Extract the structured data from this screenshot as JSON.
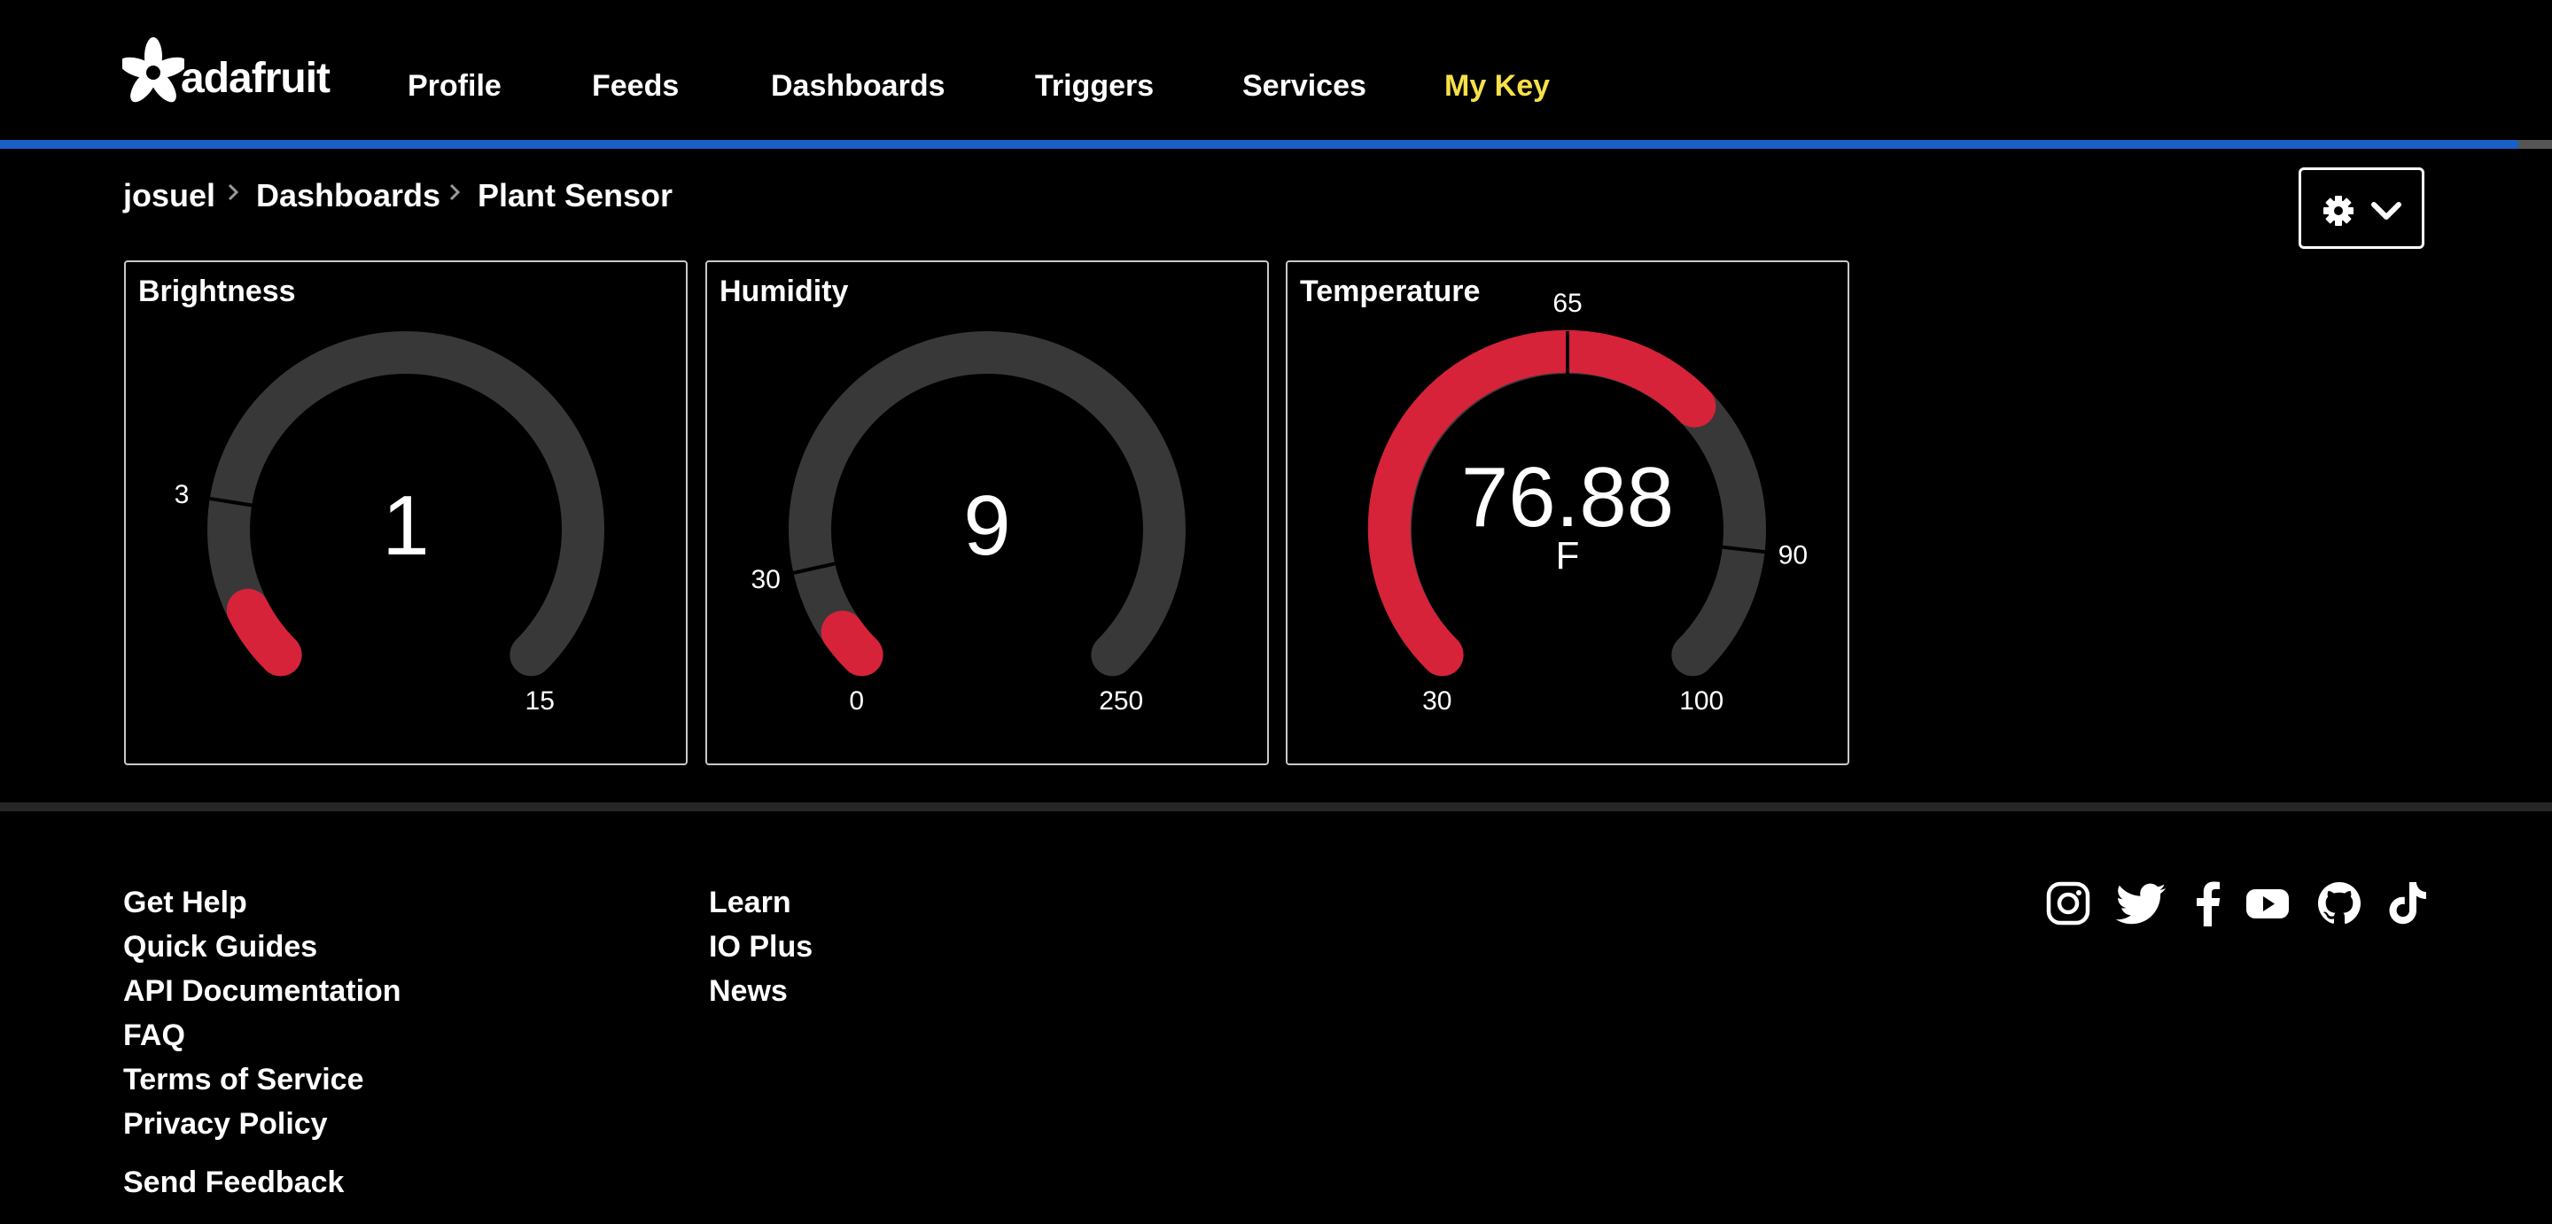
{
  "brand": {
    "name": "adafruit"
  },
  "nav": [
    {
      "label": "Profile"
    },
    {
      "label": "Feeds"
    },
    {
      "label": "Dashboards"
    },
    {
      "label": "Triggers"
    },
    {
      "label": "Services"
    },
    {
      "label": "My Key"
    }
  ],
  "breadcrumb": [
    "josuel",
    "Dashboards",
    "Plant Sensor"
  ],
  "gauges": [
    {
      "title": "Brightness",
      "value": "1",
      "unit": "",
      "min": 0,
      "max": 15,
      "min_label": "",
      "max_label": "15",
      "threshold_low": 3,
      "threshold_low_label": "3",
      "threshold_high": null,
      "threshold_high_label": ""
    },
    {
      "title": "Humidity",
      "value": "9",
      "unit": "",
      "min": 0,
      "max": 250,
      "min_label": "0",
      "max_label": "250",
      "threshold_low": 30,
      "threshold_low_label": "30",
      "threshold_high": null,
      "threshold_high_label": ""
    },
    {
      "title": "Temperature",
      "value": "76.88",
      "unit": "F",
      "min": 30,
      "max": 100,
      "min_label": "30",
      "max_label": "100",
      "threshold_low": 65,
      "threshold_low_label": "65",
      "threshold_high": 90,
      "threshold_high_label": "90"
    }
  ],
  "footer": {
    "col1": [
      "Get Help",
      "Quick Guides",
      "API Documentation",
      "FAQ",
      "Terms of Service",
      "Privacy Policy"
    ],
    "col2": [
      "Learn",
      "IO Plus",
      "News"
    ],
    "feedback": "Send Feedback",
    "social_icons": [
      "instagram-icon",
      "twitter-icon",
      "facebook-icon",
      "youtube-icon",
      "github-icon",
      "tiktok-icon"
    ]
  },
  "colors": {
    "accent_blue": "#1a5fc6",
    "my_key": "#f8e04a",
    "gauge_track": "#383838",
    "gauge_fill": "#d6233a"
  }
}
